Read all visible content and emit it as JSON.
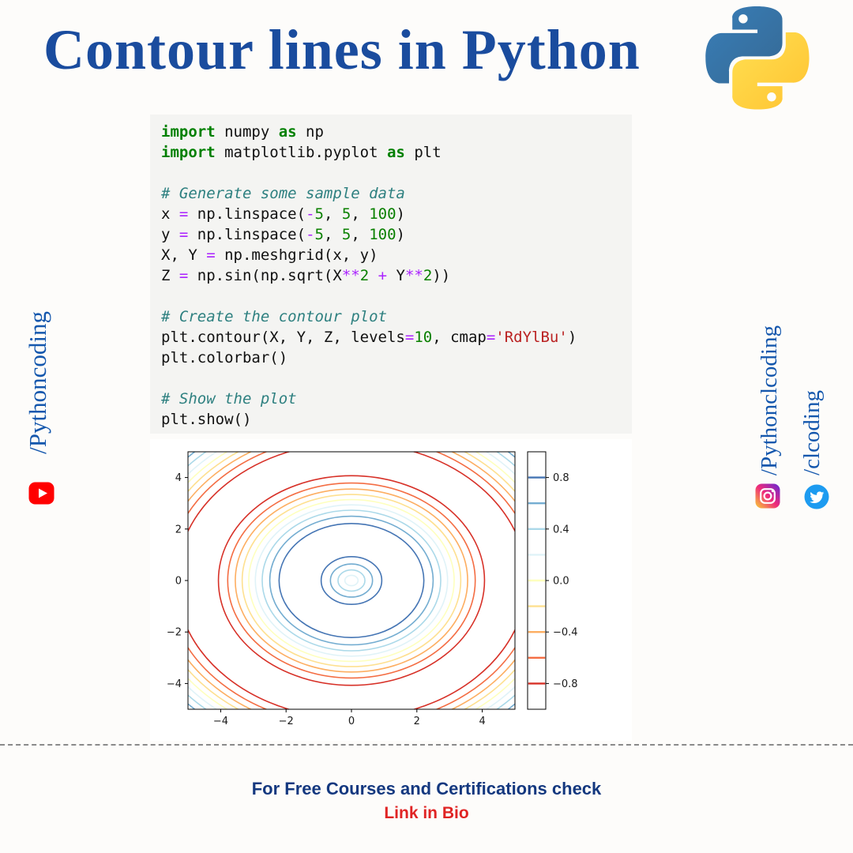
{
  "page": {
    "title": "Contour lines in Python",
    "footer_line1": "For Free Courses and Certifications check",
    "footer_line2": "Link in Bio"
  },
  "sidebar_left": {
    "handle": "/Pythoncoding"
  },
  "sidebar_right": {
    "handle1": "/Pythonclcoding",
    "handle2": "/clcoding"
  },
  "icons": {
    "python_logo": "python-logo",
    "youtube": "youtube-icon",
    "instagram": "instagram-icon",
    "twitter": "twitter-icon"
  },
  "colors": {
    "title_blue": "#1a4c9e",
    "handle_blue": "#1457ad",
    "footer_blue": "#14387f",
    "footer_red": "#e02424",
    "code_bg": "#f4f4f2",
    "youtube_red": "#ff0000",
    "twitter_blue": "#1d9bf0"
  },
  "code": {
    "lines": [
      [
        {
          "t": "import",
          "c": "kw"
        },
        {
          "t": " numpy ",
          "c": "pl"
        },
        {
          "t": "as",
          "c": "kw"
        },
        {
          "t": " np",
          "c": "pl"
        }
      ],
      [
        {
          "t": "import",
          "c": "kw"
        },
        {
          "t": " matplotlib.pyplot ",
          "c": "pl"
        },
        {
          "t": "as",
          "c": "kw"
        },
        {
          "t": " plt",
          "c": "pl"
        }
      ],
      [],
      [
        {
          "t": "# Generate some sample data",
          "c": "cm"
        }
      ],
      [
        {
          "t": "x ",
          "c": "pl"
        },
        {
          "t": "=",
          "c": "op"
        },
        {
          "t": " np.linspace(",
          "c": "pl"
        },
        {
          "t": "-",
          "c": "op"
        },
        {
          "t": "5",
          "c": "num"
        },
        {
          "t": ", ",
          "c": "pl"
        },
        {
          "t": "5",
          "c": "num"
        },
        {
          "t": ", ",
          "c": "pl"
        },
        {
          "t": "100",
          "c": "num"
        },
        {
          "t": ")",
          "c": "pl"
        }
      ],
      [
        {
          "t": "y ",
          "c": "pl"
        },
        {
          "t": "=",
          "c": "op"
        },
        {
          "t": " np.linspace(",
          "c": "pl"
        },
        {
          "t": "-",
          "c": "op"
        },
        {
          "t": "5",
          "c": "num"
        },
        {
          "t": ", ",
          "c": "pl"
        },
        {
          "t": "5",
          "c": "num"
        },
        {
          "t": ", ",
          "c": "pl"
        },
        {
          "t": "100",
          "c": "num"
        },
        {
          "t": ")",
          "c": "pl"
        }
      ],
      [
        {
          "t": "X, Y ",
          "c": "pl"
        },
        {
          "t": "=",
          "c": "op"
        },
        {
          "t": " np.meshgrid(x, y)",
          "c": "pl"
        }
      ],
      [
        {
          "t": "Z ",
          "c": "pl"
        },
        {
          "t": "=",
          "c": "op"
        },
        {
          "t": " np.sin(np.sqrt(X",
          "c": "pl"
        },
        {
          "t": "**",
          "c": "op"
        },
        {
          "t": "2",
          "c": "num"
        },
        {
          "t": " ",
          "c": "pl"
        },
        {
          "t": "+",
          "c": "op"
        },
        {
          "t": " Y",
          "c": "pl"
        },
        {
          "t": "**",
          "c": "op"
        },
        {
          "t": "2",
          "c": "num"
        },
        {
          "t": "))",
          "c": "pl"
        }
      ],
      [],
      [
        {
          "t": "# Create the contour plot",
          "c": "cm"
        }
      ],
      [
        {
          "t": "plt.contour(X, Y, Z, levels",
          "c": "pl"
        },
        {
          "t": "=",
          "c": "op"
        },
        {
          "t": "10",
          "c": "num"
        },
        {
          "t": ", cmap",
          "c": "pl"
        },
        {
          "t": "=",
          "c": "op"
        },
        {
          "t": "'RdYlBu'",
          "c": "str"
        },
        {
          "t": ")",
          "c": "pl"
        }
      ],
      [
        {
          "t": "plt.colorbar()",
          "c": "pl"
        }
      ],
      [],
      [
        {
          "t": "# Show the plot",
          "c": "cm"
        }
      ],
      [
        {
          "t": "plt.show()",
          "c": "pl"
        }
      ]
    ]
  },
  "chart_data": {
    "type": "contour",
    "expression": "Z = sin(sqrt(X**2 + Y**2))",
    "cmap": "RdYlBu",
    "x_range": [
      -5,
      5
    ],
    "y_range": [
      -5,
      5
    ],
    "x_tick_values": [
      -4,
      -2,
      0,
      2,
      4
    ],
    "x_tick_labels": [
      "−4",
      "−2",
      "0",
      "2",
      "4"
    ],
    "y_tick_values": [
      -4,
      -2,
      0,
      2,
      4
    ],
    "y_tick_labels": [
      "−4",
      "−2",
      "0",
      "2",
      "4"
    ],
    "levels": [
      -0.8,
      -0.6,
      -0.4,
      -0.2,
      0,
      0.2,
      0.4,
      0.6,
      0.8
    ],
    "level_colors": [
      "#d73027",
      "#f46d43",
      "#fdae61",
      "#fee090",
      "#feffbe",
      "#e0f3f8",
      "#abd9e9",
      "#74add1",
      "#4575b4"
    ],
    "grid": false,
    "legend": "colorbar-right",
    "colorbar": {
      "range": [
        -1,
        1
      ],
      "tick_values": [
        0.8,
        0.4,
        0.0,
        -0.4,
        -0.8
      ],
      "tick_labels": [
        "0.8",
        "0.4",
        "0.0",
        "−0.4",
        "−0.8"
      ]
    }
  }
}
